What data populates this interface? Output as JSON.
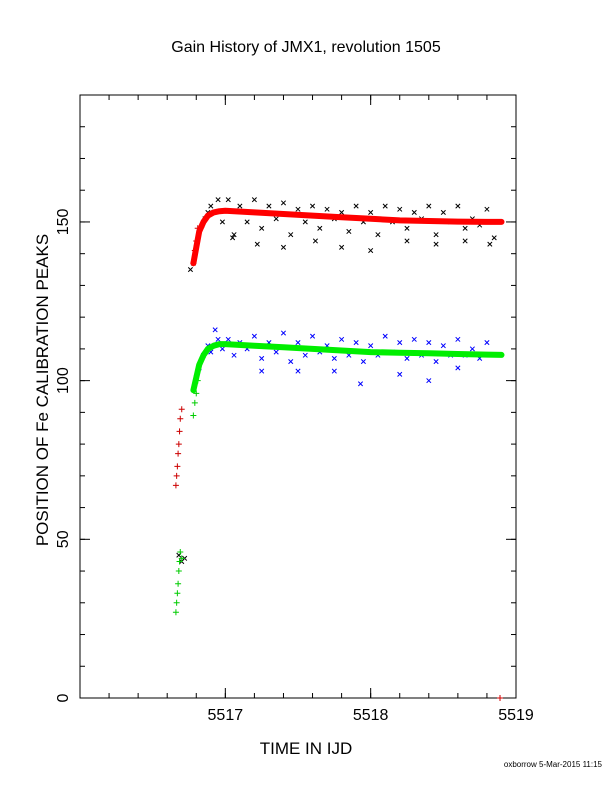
{
  "chart_data": {
    "type": "scatter",
    "title": "Gain History of JMX1, revolution 1505",
    "xlabel": "TIME IN IJD",
    "ylabel": "POSITION OF Fe CALIBRATION PEAKS",
    "xlim": [
      5516.0,
      5519.0
    ],
    "ylim": [
      0,
      190
    ],
    "x_ticks": [
      {
        "value": 5517,
        "label": "5517"
      },
      {
        "value": 5518,
        "label": "5518"
      },
      {
        "value": 5519,
        "label": "5519"
      }
    ],
    "y_ticks": [
      {
        "value": 0,
        "label": "0"
      },
      {
        "value": 50,
        "label": "50"
      },
      {
        "value": 100,
        "label": "100"
      },
      {
        "value": 150,
        "label": "150"
      }
    ],
    "grid": false,
    "series": [
      {
        "color": "#000000",
        "marker": "x",
        "kind": "points",
        "x": [
          5516.76,
          5516.78,
          5516.8,
          5516.82,
          5516.84,
          5516.86,
          5516.88,
          5516.9,
          5516.92,
          5516.95,
          5516.98,
          5517.02,
          5517.06,
          5517.1,
          5517.15,
          5517.2,
          5517.25,
          5517.3,
          5517.35,
          5517.4,
          5517.45,
          5517.5,
          5517.55,
          5517.6,
          5517.65,
          5517.7,
          5517.75,
          5517.8,
          5517.85,
          5517.9,
          5517.95,
          5518.0,
          5518.05,
          5518.1,
          5518.15,
          5518.2,
          5518.25,
          5518.3,
          5518.35,
          5518.4,
          5518.45,
          5518.5,
          5518.55,
          5518.6,
          5518.65,
          5518.7,
          5518.75,
          5518.8,
          5518.85,
          5517.05,
          5517.22,
          5517.4,
          5517.62,
          5517.8,
          5518.0,
          5518.25,
          5518.45,
          5518.65,
          5518.82,
          5516.68,
          5516.7,
          5516.72
        ],
        "y": [
          135,
          137,
          142,
          147,
          149,
          151,
          153,
          155,
          153,
          157,
          150,
          157,
          146,
          155,
          150,
          157,
          148,
          155,
          151,
          156,
          146,
          154,
          150,
          155,
          148,
          154,
          151,
          153,
          147,
          155,
          150,
          153,
          146,
          155,
          150,
          154,
          148,
          153,
          151,
          155,
          146,
          153,
          150,
          155,
          148,
          151,
          149,
          154,
          145,
          145,
          143,
          142,
          144,
          142,
          141,
          144,
          143,
          144,
          143,
          45,
          43,
          44
        ]
      },
      {
        "color": "#0000ff",
        "marker": "x",
        "kind": "points",
        "x": [
          5516.8,
          5516.82,
          5516.85,
          5516.88,
          5516.9,
          5516.93,
          5516.95,
          5516.98,
          5517.02,
          5517.06,
          5517.1,
          5517.15,
          5517.2,
          5517.25,
          5517.3,
          5517.35,
          5517.4,
          5517.45,
          5517.5,
          5517.55,
          5517.6,
          5517.65,
          5517.7,
          5517.75,
          5517.8,
          5517.85,
          5517.9,
          5517.95,
          5518.0,
          5518.05,
          5518.1,
          5518.15,
          5518.2,
          5518.25,
          5518.3,
          5518.35,
          5518.4,
          5518.45,
          5518.5,
          5518.55,
          5518.6,
          5518.65,
          5518.7,
          5518.75,
          5518.8,
          5517.25,
          5517.5,
          5517.75,
          5517.93,
          5518.2,
          5518.4,
          5518.6
        ],
        "y": [
          101,
          104,
          108,
          111,
          109,
          116,
          113,
          110,
          113,
          108,
          112,
          110,
          114,
          107,
          112,
          109,
          115,
          106,
          112,
          108,
          114,
          109,
          111,
          107,
          113,
          108,
          112,
          106,
          111,
          108,
          114,
          109,
          112,
          107,
          113,
          108,
          112,
          106,
          111,
          108,
          113,
          108,
          110,
          107,
          112,
          103,
          103,
          103,
          99,
          102,
          100,
          104
        ]
      },
      {
        "color": "#cc0000",
        "marker": "+",
        "kind": "points",
        "x": [
          5516.66,
          5516.665,
          5516.67,
          5516.675,
          5516.68,
          5516.685,
          5516.69,
          5516.7,
          5516.78,
          5516.79,
          5516.8,
          5516.81,
          5518.89
        ],
        "y": [
          67,
          70,
          73,
          77,
          80,
          84,
          88,
          91,
          137,
          141,
          144,
          148,
          0
        ]
      },
      {
        "color": "#00cc00",
        "marker": "+",
        "kind": "points",
        "x": [
          5516.66,
          5516.665,
          5516.67,
          5516.675,
          5516.68,
          5516.685,
          5516.69,
          5516.7,
          5516.78,
          5516.79,
          5516.8,
          5516.81
        ],
        "y": [
          27,
          30,
          33,
          36,
          40,
          43,
          46,
          44,
          89,
          93,
          96,
          100
        ]
      },
      {
        "color": "#ff0000",
        "marker": "line",
        "kind": "fit",
        "x": [
          5516.78,
          5516.8,
          5516.82,
          5516.85,
          5516.88,
          5516.92,
          5516.96,
          5517.0,
          5517.2,
          5517.4,
          5517.6,
          5517.8,
          5518.0,
          5518.2,
          5518.4,
          5518.6,
          5518.8,
          5518.9
        ],
        "y": [
          137,
          142,
          147,
          150,
          152,
          153,
          153.4,
          153.5,
          153,
          152.5,
          152,
          151.5,
          151,
          150.5,
          150.3,
          150.1,
          150,
          150
        ]
      },
      {
        "color": "#00ee00",
        "marker": "line",
        "kind": "fit",
        "x": [
          5516.78,
          5516.8,
          5516.82,
          5516.85,
          5516.88,
          5516.92,
          5516.96,
          5517.0,
          5517.2,
          5517.4,
          5517.6,
          5517.8,
          5518.0,
          5518.2,
          5518.4,
          5518.6,
          5518.8,
          5518.9
        ],
        "y": [
          97,
          101,
          105,
          108,
          110,
          111,
          111.5,
          111.5,
          111,
          110.5,
          110,
          109.5,
          109,
          108.8,
          108.6,
          108.4,
          108.2,
          108.1
        ]
      }
    ]
  },
  "footer": {
    "credit": "oxborrow  5-Mar-2015 11:15"
  }
}
